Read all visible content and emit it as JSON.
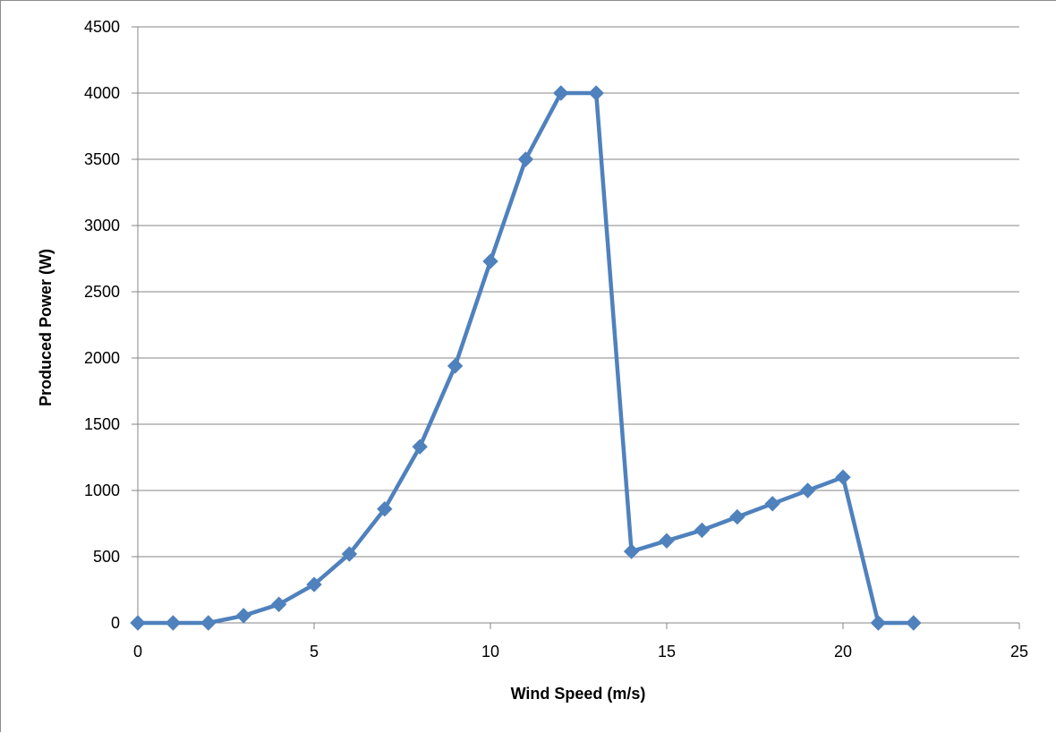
{
  "chart_data": {
    "type": "line",
    "title": "",
    "xlabel": "Wind Speed (m/s)",
    "ylabel": "Produced Power (W)",
    "xlim": [
      0,
      25
    ],
    "ylim": [
      0,
      4500
    ],
    "xticks": [
      "0",
      "5",
      "10",
      "15",
      "20",
      "25"
    ],
    "yticks": [
      "0",
      "500",
      "1000",
      "1500",
      "2000",
      "2500",
      "3000",
      "3500",
      "4000",
      "4500"
    ],
    "grid": "horizontal",
    "legend": "none",
    "series": [
      {
        "color": "#4f81bd",
        "marker": "diamond",
        "x": [
          0,
          1,
          2,
          3,
          4,
          5,
          6,
          7,
          8,
          9,
          10,
          11,
          12,
          13,
          14,
          15,
          16,
          17,
          18,
          19,
          20,
          21,
          22
        ],
        "y": [
          0,
          0,
          0,
          55,
          140,
          290,
          520,
          860,
          1330,
          1940,
          2730,
          3500,
          4000,
          4000,
          540,
          620,
          700,
          800,
          900,
          1000,
          1100,
          0,
          0
        ]
      }
    ],
    "colors": {
      "gridline": "#868686",
      "axis": "#868686",
      "frame": "#8c8c8c"
    }
  }
}
